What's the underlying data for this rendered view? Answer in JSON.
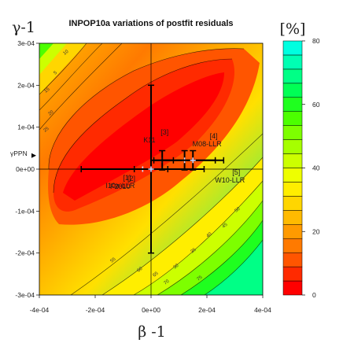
{
  "chart_data": {
    "type": "heatmap",
    "title": "INPOP10a variations of postfit residuals",
    "xlabel": "β -1",
    "ylabel": "γ-1",
    "xlim": [
      -0.0004,
      0.0004
    ],
    "ylim": [
      -0.0003,
      0.0003
    ],
    "x_ticks": [
      "-4e-04",
      "-2e-04",
      "0e+00",
      "2e-04",
      "4e-04"
    ],
    "y_ticks": [
      "-3e-04",
      "-2e-04",
      "-1e-04",
      "0e+00",
      "1e-04",
      "2e-04",
      "3e-04"
    ],
    "colorbar": {
      "title": "[%]",
      "range": [
        0,
        80
      ],
      "ticks": [
        "0",
        "20",
        "40",
        "60",
        "80"
      ],
      "colors": [
        "#ff0000",
        "#ff2a00",
        "#ff5500",
        "#ff7a00",
        "#ff9a00",
        "#ffba00",
        "#ffd600",
        "#ffee00",
        "#eeff00",
        "#ccff00",
        "#a6ff00",
        "#7dff00",
        "#4cff00",
        "#1fff1f",
        "#00ff55",
        "#00ff86",
        "#00ffb3",
        "#00ffe0"
      ]
    },
    "contour_labels": [
      "5",
      "10",
      "15",
      "20",
      "25",
      "30",
      "35",
      "40",
      "45",
      "50",
      "55",
      "60",
      "65",
      "70",
      "75"
    ],
    "gamma_ppn_label": "γPPN",
    "estimates": [
      {
        "id": "[1]",
        "name": "I10a-LLR",
        "beta": -3e-05,
        "gamma": 0.0,
        "beta_err": 0.00022,
        "gamma_err": 0.0
      },
      {
        "id": "[2]",
        "name": "F2010",
        "beta": 0.0,
        "gamma": 0.0,
        "beta_err": 6e-05,
        "gamma_err": 0.0002
      },
      {
        "id": "[3]",
        "name": "K11",
        "beta": 4e-05,
        "gamma": 2.1e-05,
        "beta_err": 4e-05,
        "gamma_err": 2.3e-05
      },
      {
        "id": "[4]",
        "name": "M08-LLR",
        "beta": 0.00012,
        "gamma": 2.1e-05,
        "beta_err": 0.00011,
        "gamma_err": 2.3e-05
      },
      {
        "id": "[5]",
        "name": "W10-LLR",
        "beta": 0.00015,
        "gamma": 2.1e-05,
        "beta_err": 0.00011,
        "gamma_err": 2.3e-05
      }
    ],
    "annotations": [
      {
        "label": "[1]",
        "sub": "I10a-LLR"
      },
      {
        "label": "[2]",
        "sub": "F2010"
      },
      {
        "label": "[3]",
        "sub": "K11"
      },
      {
        "label": "[4]",
        "sub": "M08-LLR"
      },
      {
        "label": "[5]",
        "sub": "W10-LLR"
      }
    ]
  }
}
